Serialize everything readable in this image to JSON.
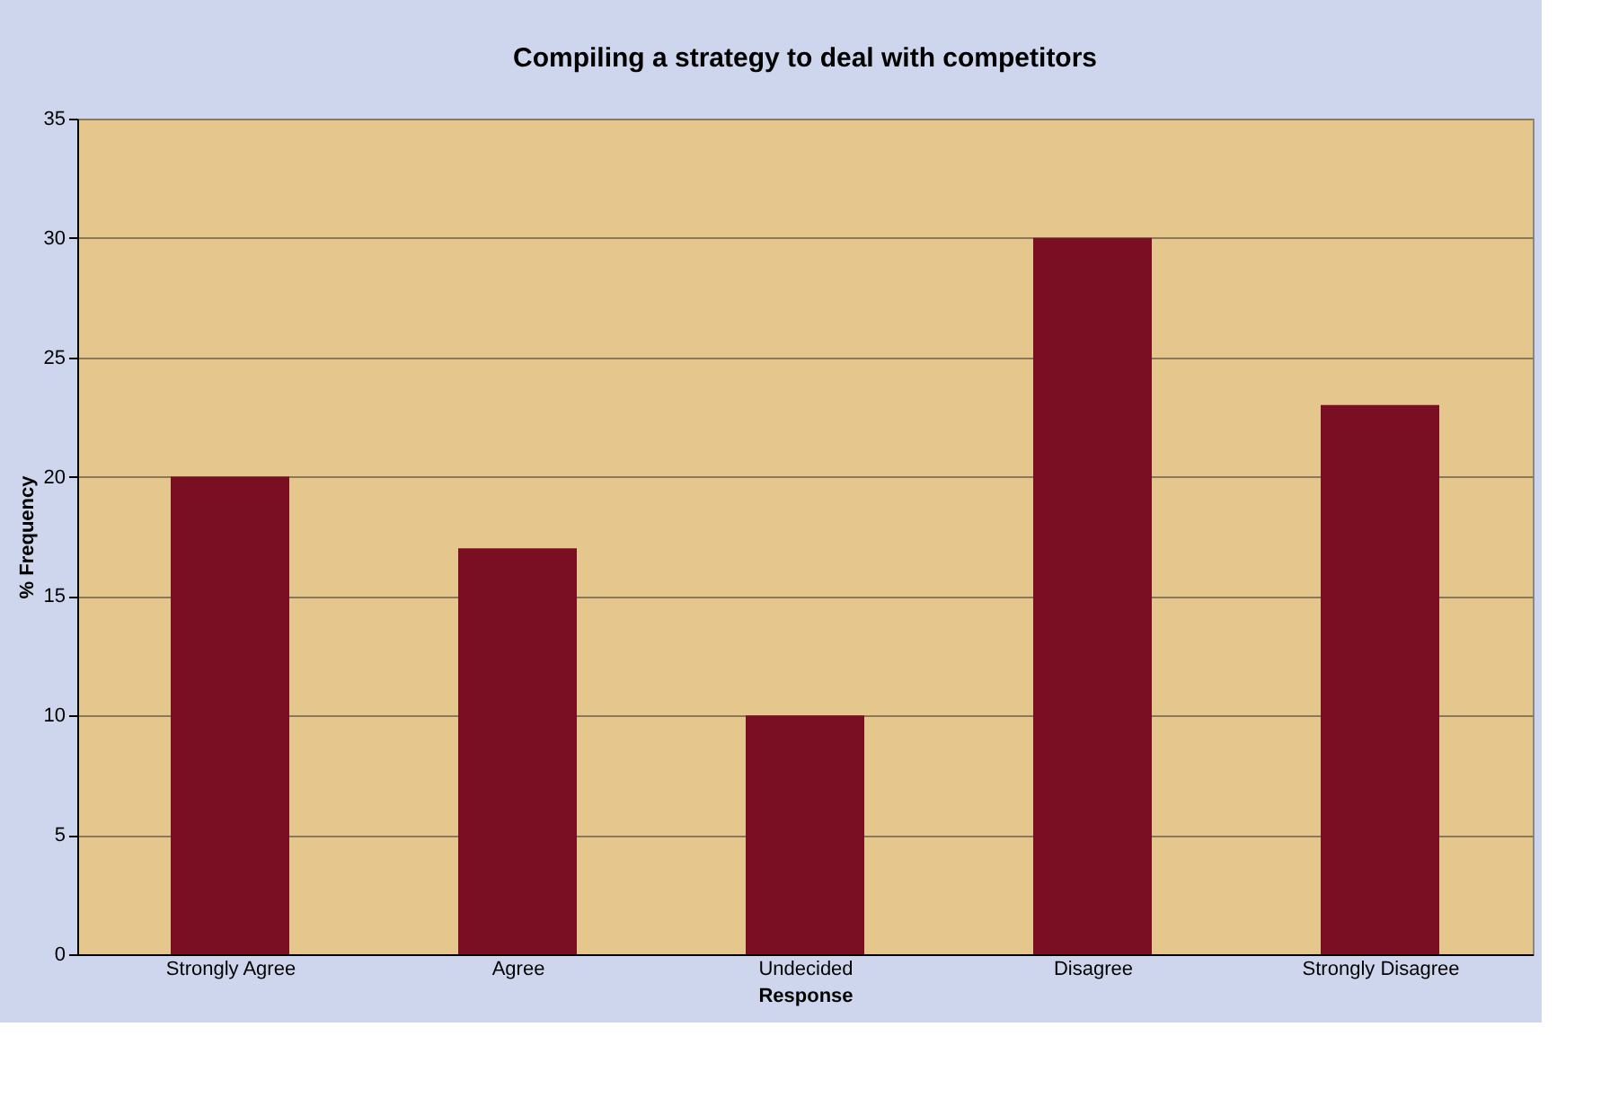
{
  "chart_data": {
    "type": "bar",
    "title": "Compiling a strategy to deal with competitors",
    "xlabel": "Response",
    "ylabel": "% Frequency",
    "categories": [
      "Strongly Agree",
      "Agree",
      "Undecided",
      "Disagree",
      "Strongly Disagree"
    ],
    "values": [
      20,
      17,
      10,
      30,
      23
    ],
    "color": "#7a0f24",
    "ylim": [
      0,
      35
    ],
    "yticks": [
      0,
      5,
      10,
      15,
      20,
      25,
      30,
      35
    ],
    "grid": "y"
  }
}
